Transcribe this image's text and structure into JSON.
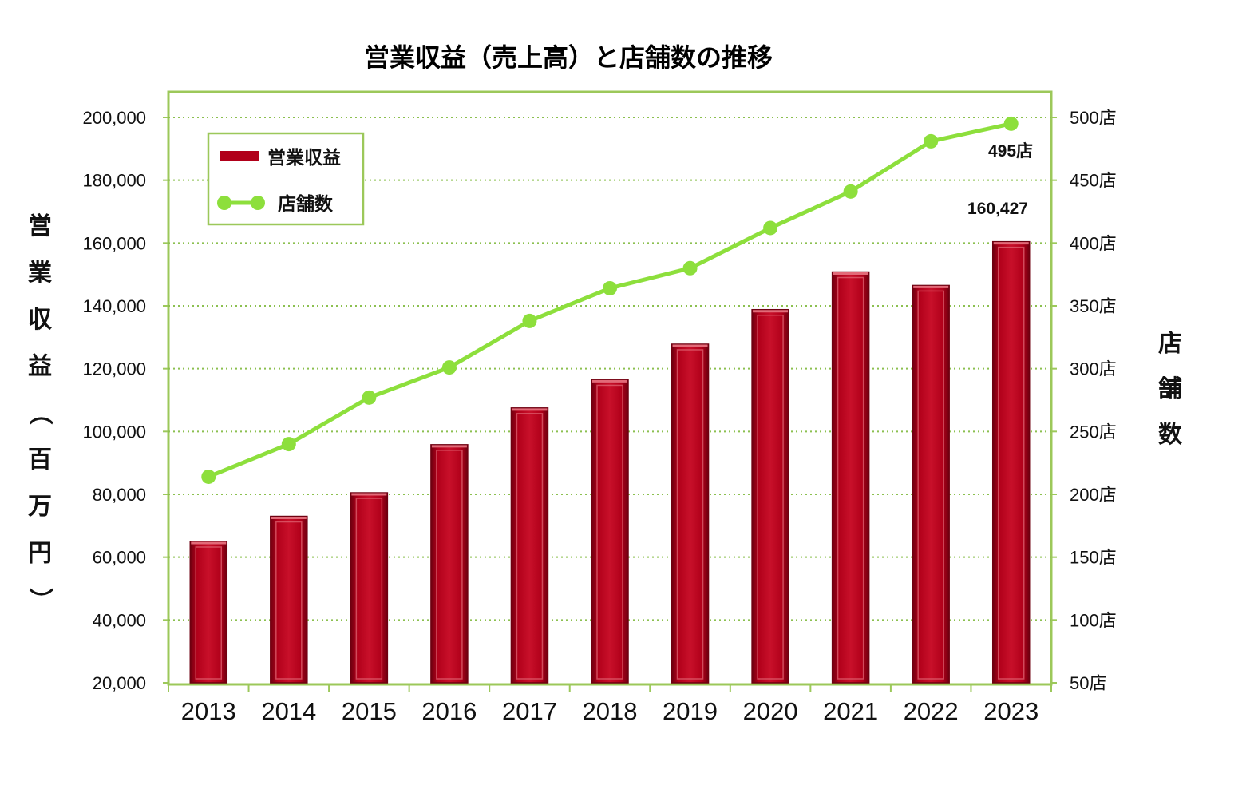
{
  "chart_data": {
    "type": "bar+line",
    "title": "営業収益（売上高）と店舗数の推移",
    "categories": [
      "2013",
      "2014",
      "2015",
      "2016",
      "2017",
      "2018",
      "2019",
      "2020",
      "2021",
      "2022",
      "2023"
    ],
    "series": [
      {
        "name": "営業収益",
        "type": "bar",
        "axis": "left",
        "values": [
          65000,
          73000,
          80500,
          95800,
          107500,
          116500,
          127800,
          138800,
          150800,
          146500,
          160427
        ]
      },
      {
        "name": "店舗数",
        "type": "line",
        "axis": "right",
        "values": [
          214,
          240,
          277,
          301,
          338,
          364,
          380,
          412,
          441,
          481,
          495
        ]
      }
    ],
    "y_left": {
      "label": "営業収益（百万円）",
      "range": [
        20000,
        200000
      ],
      "ticks": [
        "20,000",
        "40,000",
        "60,000",
        "80,000",
        "100,000",
        "120,000",
        "140,000",
        "160,000",
        "180,000",
        "200,000"
      ]
    },
    "y_right": {
      "label": "店舗数",
      "range": [
        50,
        500
      ],
      "ticks": [
        "50店",
        "100店",
        "150店",
        "200店",
        "250店",
        "300店",
        "350店",
        "400店",
        "450店",
        "500店"
      ]
    },
    "annotations": {
      "bar_last": "160,427",
      "line_last": "495店"
    },
    "grid": true,
    "legend_position": "top-left",
    "colors": {
      "bar": "#b1001a",
      "bar_dark": "#6e0010",
      "bar_light": "#e26a78",
      "line": "#8ddf3c",
      "frame": "#9cc85a",
      "grid": "#8cc050"
    }
  }
}
